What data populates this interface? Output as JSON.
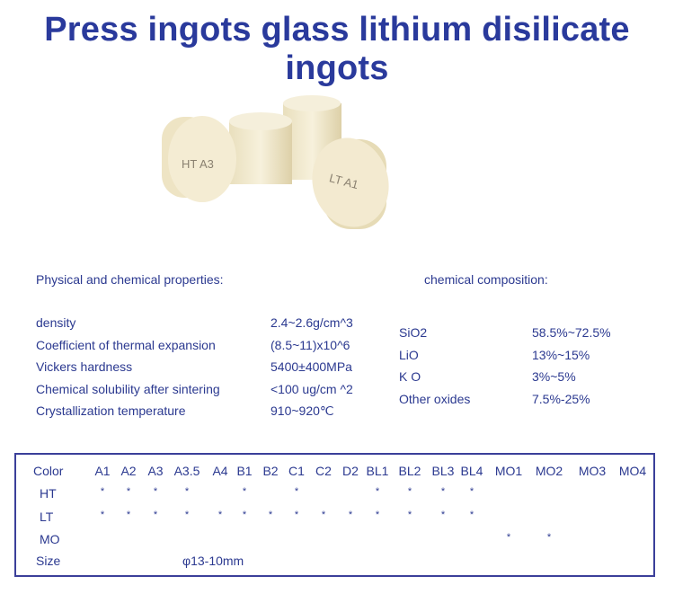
{
  "title": "Press ingots glass lithium disilicate ingots",
  "image": {
    "labels": [
      "HT A3",
      "LT A1",
      "LT A1"
    ]
  },
  "physical": {
    "heading": "Physical and chemical properties:",
    "rows": [
      {
        "name": "density",
        "value": "2.4~2.6g/cm^3"
      },
      {
        "name": "Coefficient of thermal expansion",
        "value": "(8.5~11)x10^6"
      },
      {
        "name": "Vickers hardness",
        "value": "5400±400MPa"
      },
      {
        "name": "Chemical solubility after sintering",
        "value": "<100  ug/cm ^2"
      },
      {
        "name": "Crystallization temperature",
        "value": "910~920℃"
      }
    ]
  },
  "chemical": {
    "heading": "chemical composition:",
    "rows": [
      {
        "name": "SiO2",
        "value": "58.5%~72.5%"
      },
      {
        "name": "LiO",
        "value": "13%~15%"
      },
      {
        "name": "K O",
        "value": "3%~5%"
      },
      {
        "name": "Other oxides",
        "value": "7.5%-25%"
      }
    ]
  },
  "shade_table": {
    "header_label": "Color",
    "colors": [
      "A1",
      "A2",
      "A3",
      "A3.5",
      "A4",
      "B1",
      "B2",
      "C1",
      "C2",
      "D2",
      "BL1",
      "BL2",
      "BL3",
      "BL4",
      "MO1",
      "MO2",
      "MO3",
      "MO4"
    ],
    "rows": [
      {
        "label": "HT",
        "marks": [
          "*",
          "*",
          "*",
          "*",
          "",
          "*",
          "",
          "*",
          "",
          "",
          "*",
          "*",
          "*",
          "*",
          "",
          "",
          "",
          ""
        ]
      },
      {
        "label": "LT",
        "marks": [
          "*",
          "*",
          "*",
          "*",
          "*",
          "*",
          "*",
          "*",
          "*",
          "*",
          "*",
          "*",
          "*",
          "*",
          "",
          "",
          "",
          ""
        ]
      },
      {
        "label": "MO",
        "marks": [
          "",
          "",
          "",
          "",
          "",
          "",
          "",
          "",
          "",
          "",
          "",
          "",
          "",
          "",
          "*",
          "*",
          "",
          ""
        ]
      }
    ],
    "size_label": "Size",
    "size_value": "φ13-10mm"
  },
  "colors": {
    "text": "#2b3990",
    "title": "#2a3a9c",
    "border": "#3b3f9a",
    "ingot": "#f3ecd2"
  }
}
